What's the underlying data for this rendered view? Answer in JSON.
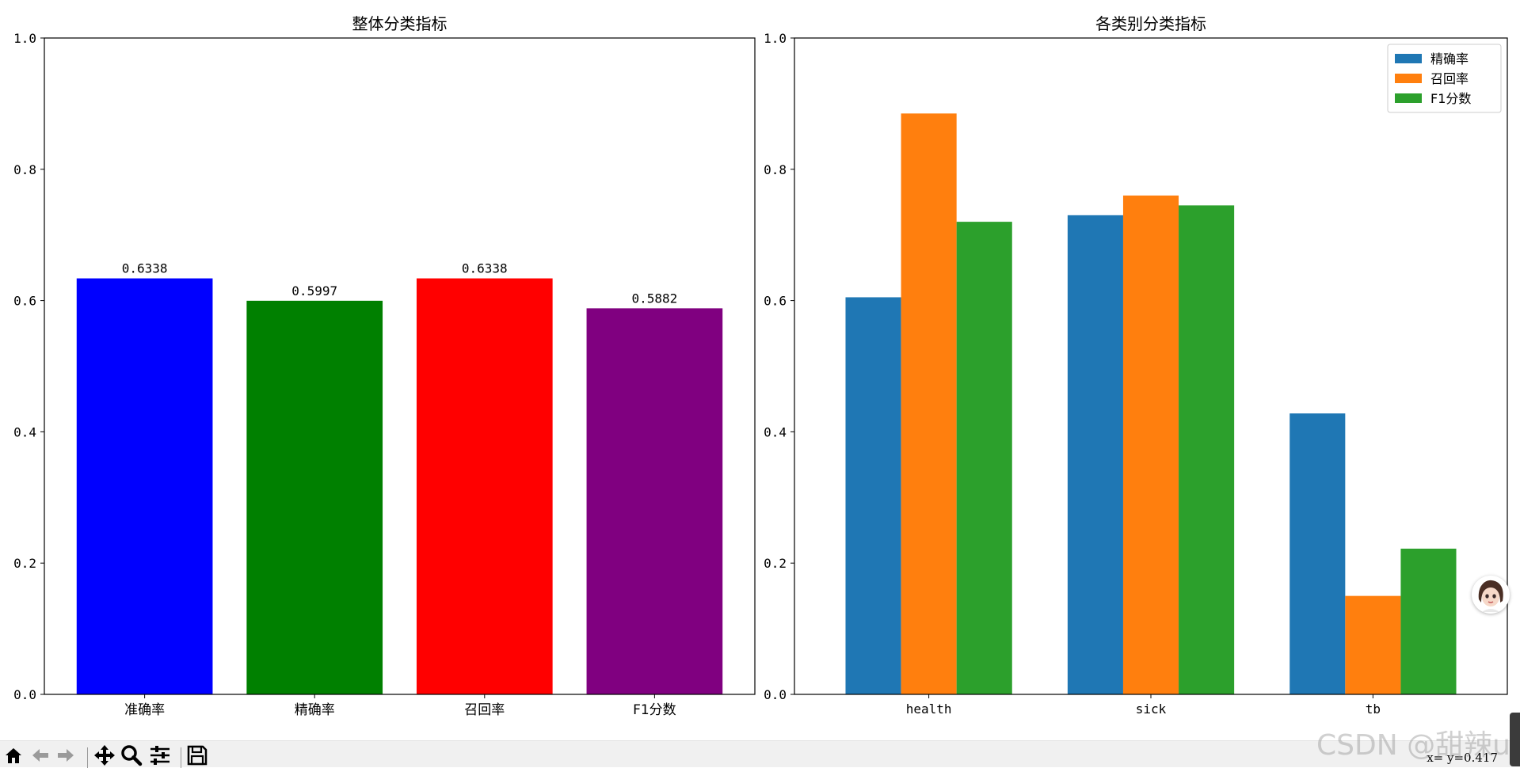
{
  "chart_data": [
    {
      "type": "bar",
      "title": "整体分类指标",
      "categories": [
        "准确率",
        "精确率",
        "召回率",
        "F1分数"
      ],
      "values": [
        0.6338,
        0.5997,
        0.6338,
        0.5882
      ],
      "value_labels": [
        "0.6338",
        "0.5997",
        "0.6338",
        "0.5882"
      ],
      "colors": [
        "#0000ff",
        "#008000",
        "#ff0000",
        "#800080"
      ],
      "xlabel": "",
      "ylabel": "",
      "ylim": [
        0,
        1.0
      ],
      "yticks": [
        "0.0",
        "0.2",
        "0.4",
        "0.6",
        "0.8",
        "1.0"
      ],
      "grid": false
    },
    {
      "type": "bar",
      "title": "各类别分类指标",
      "categories": [
        "health",
        "sick",
        "tb"
      ],
      "series": [
        {
          "name": "精确率",
          "color": "#1f77b4",
          "values": [
            0.605,
            0.73,
            0.428
          ]
        },
        {
          "name": "召回率",
          "color": "#ff7f0e",
          "values": [
            0.885,
            0.76,
            0.15
          ]
        },
        {
          "name": "F1分数",
          "color": "#2ca02c",
          "values": [
            0.72,
            0.745,
            0.222
          ]
        }
      ],
      "xlabel": "",
      "ylabel": "",
      "ylim": [
        0,
        1.0
      ],
      "yticks": [
        "0.0",
        "0.2",
        "0.4",
        "0.6",
        "0.8",
        "1.0"
      ],
      "legend": "top-right",
      "grid": false
    }
  ],
  "toolbar": {
    "buttons": [
      "home-icon",
      "back-icon",
      "forward-icon",
      "pan-icon",
      "zoom-icon",
      "configure-subplots-icon",
      "save-icon"
    ],
    "coords": "x= y=0.417"
  },
  "watermark": "CSDN @甜辣uu"
}
